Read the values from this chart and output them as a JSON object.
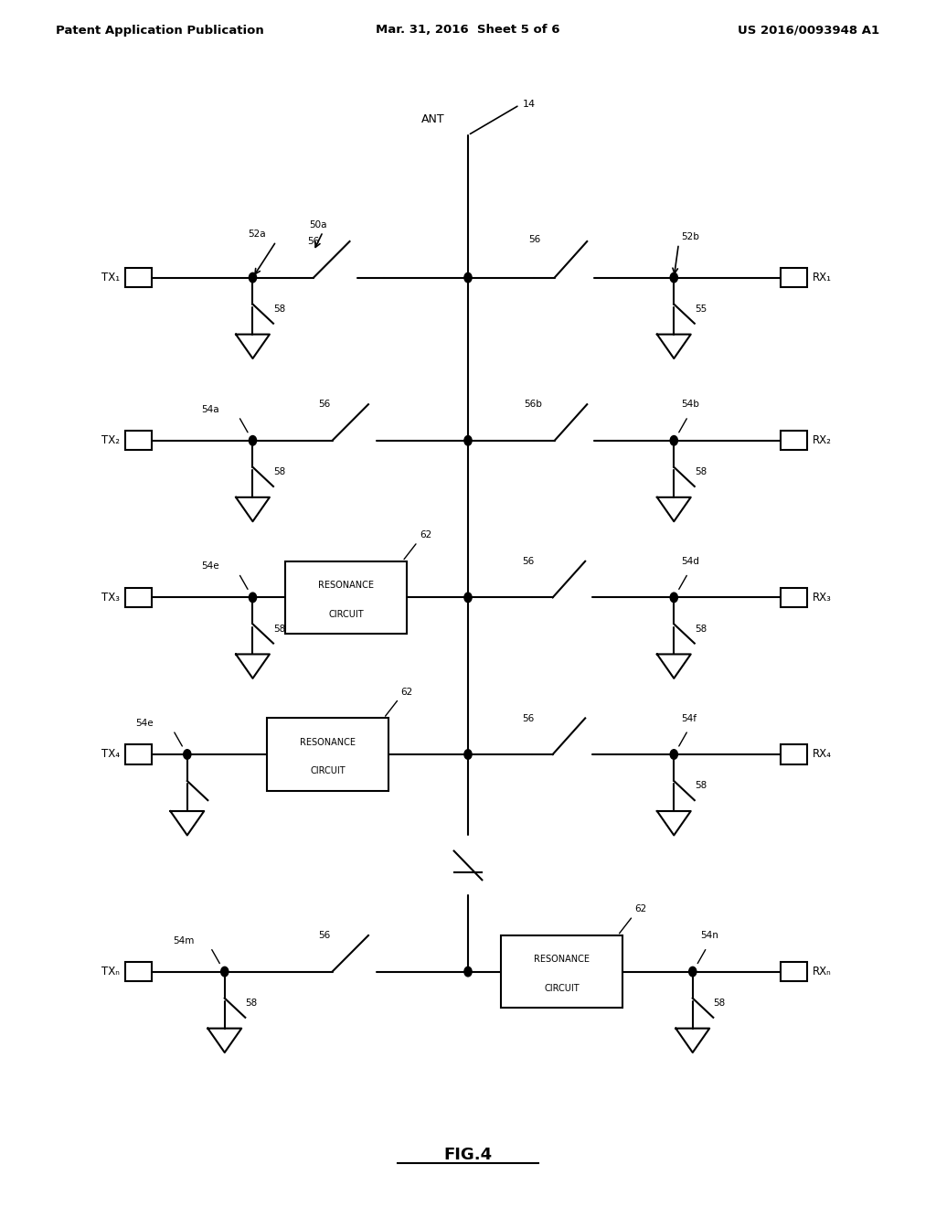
{
  "title": "FIG.4",
  "header_left": "Patent Application Publication",
  "header_center": "Mar. 31, 2016  Sheet 5 of 6",
  "header_right": "US 2016/0093948 A1",
  "bg_color": "#ffffff",
  "line_color": "#000000"
}
